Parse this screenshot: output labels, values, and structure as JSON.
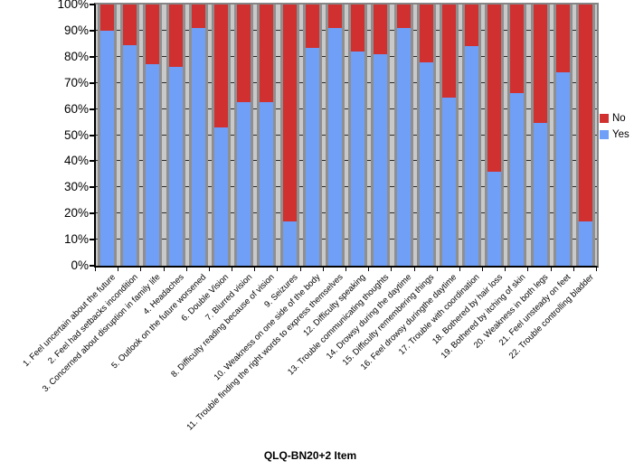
{
  "chart_data": {
    "type": "bar",
    "variant": "stacked-100-percent-column",
    "title": "",
    "xlabel": "QLQ-BN20+2 Item",
    "ylabel": "",
    "ylim": [
      0,
      100
    ],
    "grid": true,
    "legend_position": "right",
    "y_ticks": [
      "0%",
      "10%",
      "20%",
      "30%",
      "40%",
      "50%",
      "60%",
      "70%",
      "80%",
      "90%",
      "100%"
    ],
    "categories": [
      "1. Feel uncertain about the future",
      "2. Feel had setbacks incondition",
      "3. Concerned about disruption in family life",
      "4. Headaches",
      "5. Outlook on the future worsened",
      "6. Double Vision",
      "7. Blurred vision",
      "8. Difficulty reading because of vision",
      "9. Seizures",
      "10. Weakness on one side of the body",
      "11. Trouble finding the right words to express themselves",
      "12. Difficulty speaking",
      "13. Trouble communicating thoughts",
      "14. Drowsy during the daytime",
      "15. Difficulty remembering things",
      "16. Feel drowsy duringthe daytime",
      "17. Trouble with coordination",
      "18. Bothered by hair loss",
      "19. Bothered by itching of skin",
      "20. Weakness in both legs",
      "21. Feel unsteady on feet",
      "22. Trouble controlling bladder"
    ],
    "series": [
      {
        "name": "No",
        "color": "#d03030",
        "values": [
          10,
          15.5,
          23,
          24,
          9,
          47,
          37.5,
          37.5,
          83,
          16.5,
          9,
          18,
          19,
          9,
          22,
          35.5,
          16,
          64,
          34,
          45.5,
          26,
          83
        ]
      },
      {
        "name": "Yes",
        "color": "#6f9ff7",
        "values": [
          90,
          84.5,
          77,
          76,
          91,
          53,
          62.5,
          62.5,
          17,
          83.5,
          91,
          82,
          81,
          91,
          78,
          64.5,
          84,
          36,
          66,
          54.5,
          74,
          17
        ]
      }
    ]
  },
  "legend": {
    "items": [
      {
        "label": "No",
        "color": "#d03030"
      },
      {
        "label": "Yes",
        "color": "#6f9ff7"
      }
    ]
  },
  "axes": {
    "x_title": "QLQ-BN20+2 Item"
  }
}
